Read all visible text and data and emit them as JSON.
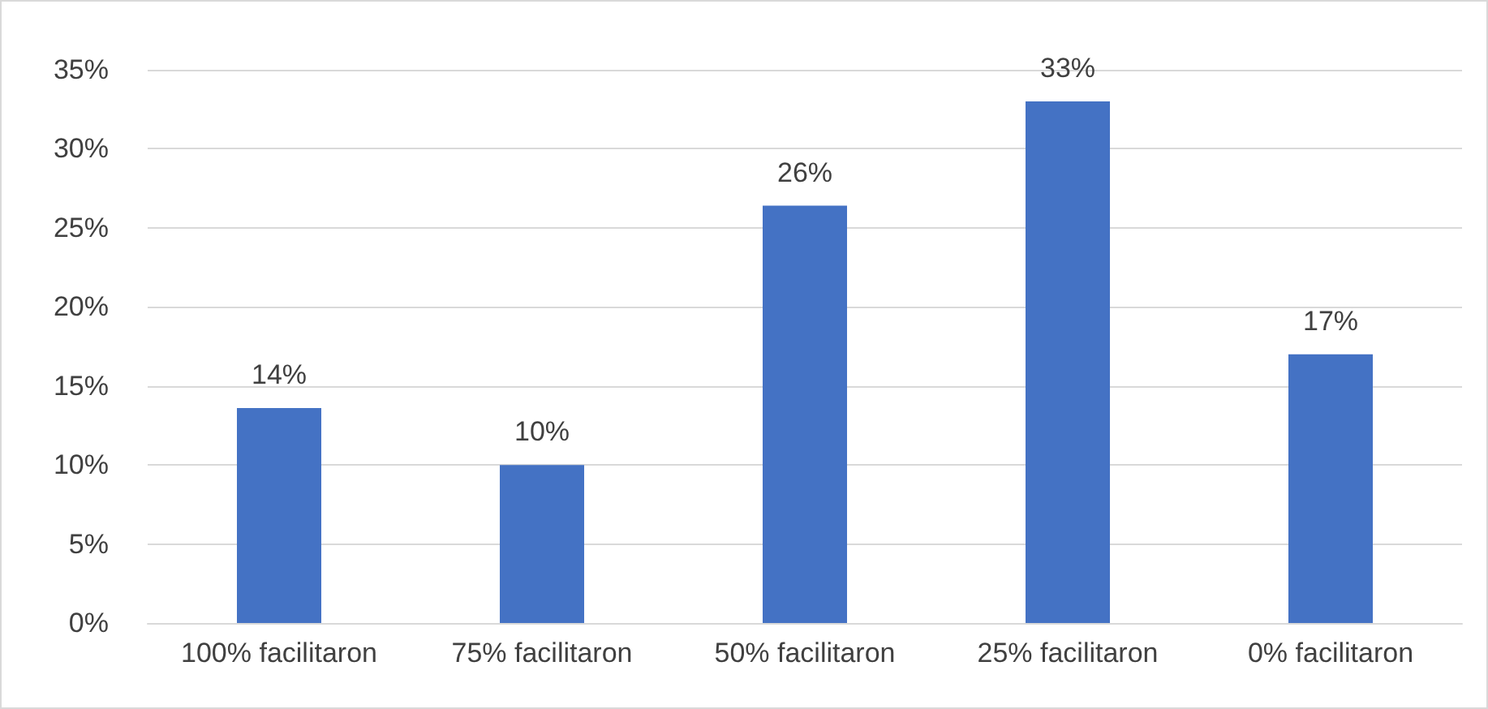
{
  "chart_data": {
    "type": "bar",
    "categories": [
      "100% facilitaron",
      "75% facilitaron",
      "50% facilitaron",
      "25% facilitaron",
      "0% facilitaron"
    ],
    "values": [
      13.6,
      10,
      26.4,
      33,
      17
    ],
    "value_labels": [
      "14%",
      "10%",
      "26%",
      "33%",
      "17%"
    ],
    "color": "#4472c4",
    "ylim": [
      0,
      35
    ],
    "yticks": [
      {
        "value": 0,
        "label": "0%"
      },
      {
        "value": 5,
        "label": "5%"
      },
      {
        "value": 10,
        "label": "10%"
      },
      {
        "value": 15,
        "label": "15%"
      },
      {
        "value": 20,
        "label": "20%"
      },
      {
        "value": 25,
        "label": "25%"
      },
      {
        "value": 30,
        "label": "30%"
      },
      {
        "value": 35,
        "label": "35%"
      }
    ],
    "grid": "y"
  }
}
